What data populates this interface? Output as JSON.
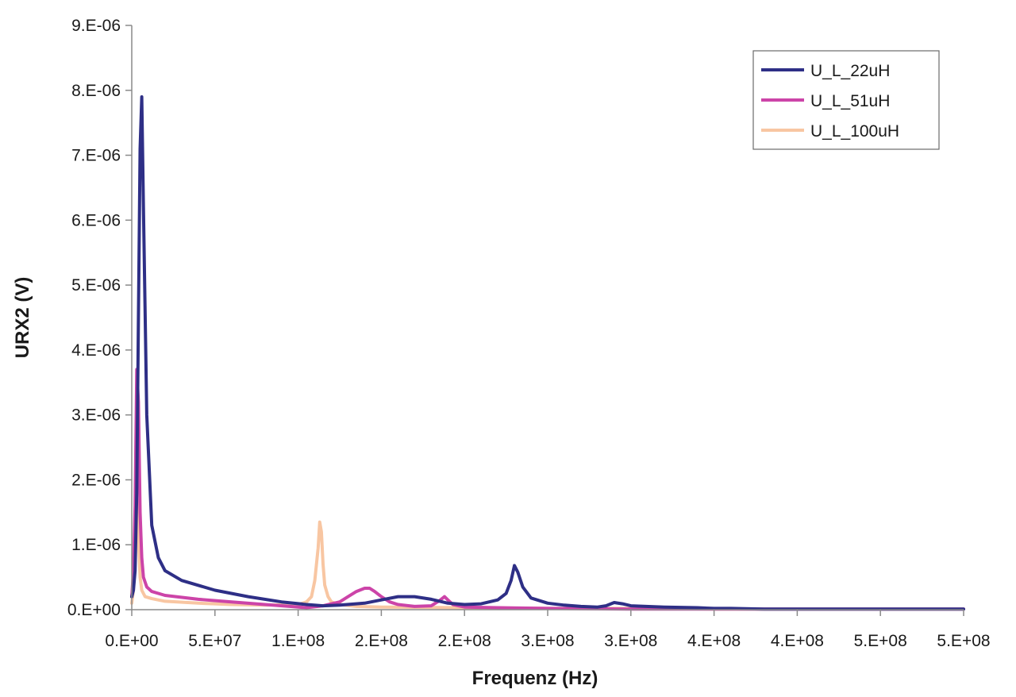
{
  "chart_data": {
    "type": "line",
    "xlabel": "Frequenz (Hz)",
    "ylabel": "URX2 (V)",
    "xlim": [
      0,
      500000000
    ],
    "ylim": [
      0,
      9e-06
    ],
    "x_tick_values": [
      0,
      50000000,
      100000000,
      150000000,
      200000000,
      250000000,
      300000000,
      350000000,
      400000000,
      450000000,
      500000000
    ],
    "x_tick_labels": [
      "0.E+00",
      "5.E+07",
      "1.E+08",
      "2.E+08",
      "2.E+08",
      "3.E+08",
      "3.E+08",
      "4.E+08",
      "4.E+08",
      "5.E+08",
      "5.E+08"
    ],
    "y_tick_values": [
      0,
      1e-06,
      2e-06,
      3e-06,
      4e-06,
      5e-06,
      6e-06,
      7e-06,
      8e-06,
      9e-06
    ],
    "y_tick_labels": [
      "0.E+00",
      "1.E-06",
      "2.E-06",
      "3.E-06",
      "4.E-06",
      "5.E-06",
      "6.E-06",
      "7.E-06",
      "8.E-06",
      "9.E-06"
    ],
    "grid": false,
    "legend_position": "top-right",
    "series": [
      {
        "name": "U_L_22uH",
        "color": "#2e2f86",
        "x": [
          0,
          1000000,
          2000000,
          3000000,
          4000000,
          5000000,
          6000000,
          7000000,
          9000000,
          12000000,
          16000000,
          20000000,
          30000000,
          50000000,
          70000000,
          90000000,
          105000000,
          115000000,
          125000000,
          140000000,
          150000000,
          160000000,
          170000000,
          180000000,
          190000000,
          200000000,
          210000000,
          220000000,
          225000000,
          228000000,
          230000000,
          232000000,
          235000000,
          240000000,
          250000000,
          260000000,
          270000000,
          280000000,
          285000000,
          290000000,
          295000000,
          300000000,
          320000000,
          340000000,
          350000000,
          360000000,
          380000000,
          400000000,
          450000000,
          500000000
        ],
        "y": [
          2e-07,
          3e-07,
          6e-07,
          1.8e-06,
          4.5e-06,
          7.1e-06,
          7.9e-06,
          6.2e-06,
          3e-06,
          1.3e-06,
          8e-07,
          6e-07,
          4.5e-07,
          3e-07,
          2e-07,
          1.2e-07,
          8e-08,
          6e-08,
          7e-08,
          1e-07,
          1.5e-07,
          2e-07,
          2e-07,
          1.6e-07,
          1e-07,
          8e-08,
          9e-08,
          1.5e-07,
          2.5e-07,
          4.5e-07,
          6.8e-07,
          5.8e-07,
          3.5e-07,
          1.8e-07,
          1e-07,
          7e-08,
          5e-08,
          4e-08,
          6e-08,
          1.1e-07,
          9e-08,
          6e-08,
          4e-08,
          3e-08,
          2e-08,
          2e-08,
          1e-08,
          1e-08,
          1e-08,
          1e-08
        ]
      },
      {
        "name": "U_L_51uH",
        "color": "#cc44a8",
        "x": [
          0,
          1000000,
          2000000,
          3000000,
          4000000,
          5000000,
          6000000,
          7000000,
          9000000,
          12000000,
          20000000,
          40000000,
          60000000,
          80000000,
          95000000,
          105000000,
          115000000,
          125000000,
          130000000,
          135000000,
          140000000,
          143000000,
          146000000,
          150000000,
          155000000,
          160000000,
          170000000,
          180000000,
          185000000,
          188000000,
          190000000,
          193000000,
          200000000,
          220000000,
          250000000,
          300000000,
          350000000,
          400000000,
          450000000,
          500000000
        ],
        "y": [
          2e-07,
          6e-07,
          1.6e-06,
          3.7e-06,
          3.2e-06,
          1.5e-06,
          8e-07,
          5e-07,
          3.5e-07,
          2.8e-07,
          2.2e-07,
          1.6e-07,
          1.2e-07,
          8e-08,
          5e-08,
          3e-08,
          6e-08,
          1.2e-07,
          2e-07,
          2.8e-07,
          3.3e-07,
          3.3e-07,
          2.8e-07,
          2e-07,
          1.2e-07,
          8e-08,
          5e-08,
          6e-08,
          1.4e-07,
          2e-07,
          1.5e-07,
          8e-08,
          4e-08,
          3e-08,
          2e-08,
          1e-08,
          1e-08,
          1e-08,
          1e-08,
          1e-08
        ]
      },
      {
        "name": "U_L_100uH",
        "color": "#f8c6a2",
        "x": [
          0,
          1000000,
          2000000,
          3000000,
          4000000,
          5000000,
          6000000,
          8000000,
          12000000,
          20000000,
          40000000,
          60000000,
          80000000,
          100000000,
          105000000,
          108000000,
          110000000,
          112000000,
          113000000,
          114000000,
          115000000,
          116000000,
          118000000,
          120000000,
          125000000,
          135000000,
          150000000,
          200000000,
          250000000,
          300000000,
          350000000,
          400000000,
          450000000,
          500000000
        ],
        "y": [
          1e-07,
          3e-07,
          1.2e-06,
          1.7e-06,
          1.1e-06,
          5e-07,
          3e-07,
          2e-07,
          1.7e-07,
          1.3e-07,
          1e-07,
          8e-08,
          7e-08,
          8e-08,
          1.2e-07,
          2e-07,
          4.5e-07,
          9.5e-07,
          1.35e-06,
          1.2e-06,
          7e-07,
          3.8e-07,
          2e-07,
          1.2e-07,
          8e-08,
          5e-08,
          4e-08,
          3e-08,
          2e-08,
          2e-08,
          1e-08,
          1e-08,
          1e-08,
          1e-08
        ]
      }
    ]
  }
}
